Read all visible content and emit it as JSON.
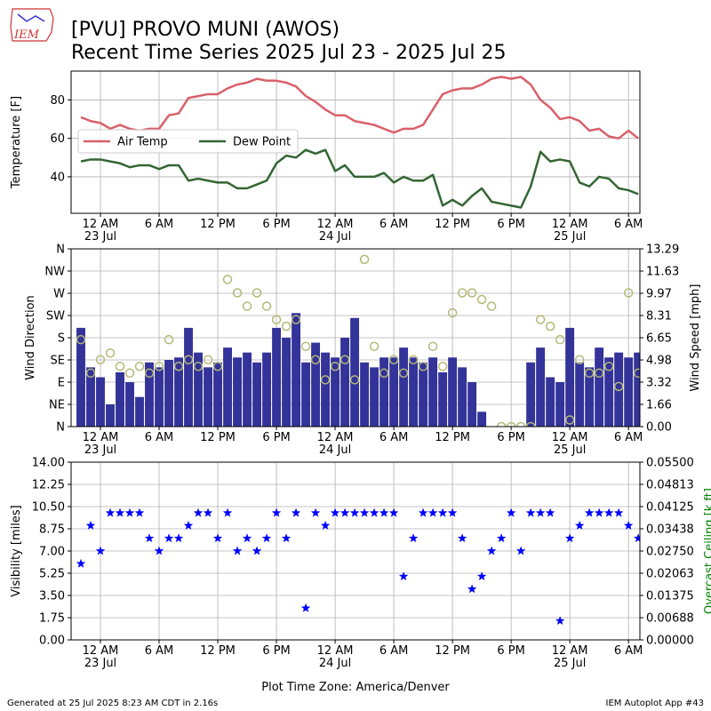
{
  "header": {
    "logo": "IEM",
    "title": "[PVU] PROVO MUNI (AWOS)",
    "subtitle": "Recent Time Series 2025 Jul 23 - 2025 Jul 25"
  },
  "footer": {
    "left": "Generated at 25 Jul 2025 8:23 AM CDT in 2.16s",
    "right": "IEM Autoplot App #43"
  },
  "chart_data": [
    {
      "type": "line",
      "ylabel": "Temperature [F]",
      "x": [
        "2025-07-22T22:00",
        "2025-07-22T23:00",
        "2025-07-23T00:00",
        "2025-07-23T01:00",
        "2025-07-23T02:00",
        "2025-07-23T03:00",
        "2025-07-23T04:00",
        "2025-07-23T05:00",
        "2025-07-23T06:00",
        "2025-07-23T07:00",
        "2025-07-23T08:00",
        "2025-07-23T09:00",
        "2025-07-23T10:00",
        "2025-07-23T11:00",
        "2025-07-23T12:00",
        "2025-07-23T13:00",
        "2025-07-23T14:00",
        "2025-07-23T15:00",
        "2025-07-23T16:00",
        "2025-07-23T17:00",
        "2025-07-23T18:00",
        "2025-07-23T19:00",
        "2025-07-23T20:00",
        "2025-07-23T21:00",
        "2025-07-23T22:00",
        "2025-07-23T23:00",
        "2025-07-24T00:00",
        "2025-07-24T01:00",
        "2025-07-24T02:00",
        "2025-07-24T03:00",
        "2025-07-24T04:00",
        "2025-07-24T05:00",
        "2025-07-24T06:00",
        "2025-07-24T07:00",
        "2025-07-24T08:00",
        "2025-07-24T09:00",
        "2025-07-24T10:00",
        "2025-07-24T11:00",
        "2025-07-24T12:00",
        "2025-07-24T13:00",
        "2025-07-24T14:00",
        "2025-07-24T15:00",
        "2025-07-24T16:00",
        "2025-07-24T17:00",
        "2025-07-24T18:00",
        "2025-07-24T19:00",
        "2025-07-24T20:00",
        "2025-07-24T21:00",
        "2025-07-24T22:00",
        "2025-07-24T23:00",
        "2025-07-25T00:00",
        "2025-07-25T01:00",
        "2025-07-25T02:00",
        "2025-07-25T03:00",
        "2025-07-25T04:00",
        "2025-07-25T05:00",
        "2025-07-25T06:00",
        "2025-07-25T07:00"
      ],
      "series": [
        {
          "name": "Air Temp",
          "color": "#d9606a",
          "values": [
            71,
            69,
            68,
            65,
            67,
            65,
            64,
            65,
            65,
            72,
            73,
            81,
            82,
            83,
            83,
            86,
            88,
            89,
            91,
            90,
            90,
            89,
            87,
            82,
            79,
            75,
            72,
            72,
            69,
            68,
            67,
            65,
            63,
            65,
            65,
            67,
            75,
            83,
            85,
            86,
            86,
            88,
            91,
            92,
            91,
            92,
            88,
            80,
            76,
            70,
            71,
            69,
            64,
            65,
            61,
            60,
            64,
            60
          ]
        },
        {
          "name": "Dew Point",
          "color": "#336633",
          "values": [
            48,
            49,
            49,
            48,
            47,
            45,
            46,
            46,
            44,
            46,
            46,
            38,
            39,
            38,
            37,
            37,
            34,
            34,
            36,
            38,
            47,
            51,
            50,
            54,
            52,
            54,
            43,
            46,
            40,
            40,
            40,
            42,
            37,
            40,
            38,
            38,
            41,
            25,
            28,
            25,
            30,
            34,
            27,
            26,
            25,
            24,
            35,
            53,
            48,
            49,
            48,
            37,
            35,
            40,
            39,
            34,
            33,
            31
          ]
        }
      ],
      "xlim": [
        "2025-07-22T21:00",
        "2025-07-25T07:10"
      ],
      "xticks": [
        {
          "value": "2025-07-23T00:00",
          "label": "12 AM\n23 Jul"
        },
        {
          "value": "2025-07-23T06:00",
          "label": "6 AM"
        },
        {
          "value": "2025-07-23T12:00",
          "label": "12 PM"
        },
        {
          "value": "2025-07-23T18:00",
          "label": "6 PM"
        },
        {
          "value": "2025-07-24T00:00",
          "label": "12 AM\n24 Jul"
        },
        {
          "value": "2025-07-24T06:00",
          "label": "6 AM"
        },
        {
          "value": "2025-07-24T12:00",
          "label": "12 PM"
        },
        {
          "value": "2025-07-24T18:00",
          "label": "6 PM"
        },
        {
          "value": "2025-07-25T00:00",
          "label": "12 AM\n25 Jul"
        },
        {
          "value": "2025-07-25T06:00",
          "label": "6 AM"
        }
      ],
      "ylim": [
        21,
        95
      ],
      "yticks": [
        40,
        60,
        80
      ],
      "grid": true,
      "legend": "upper left"
    },
    {
      "type": "bar",
      "ylabel": "Wind Direction",
      "y2label": "Wind Speed [mph]",
      "x": [
        "2025-07-22T22:00",
        "2025-07-22T23:00",
        "2025-07-23T00:00",
        "2025-07-23T01:00",
        "2025-07-23T02:00",
        "2025-07-23T03:00",
        "2025-07-23T04:00",
        "2025-07-23T05:00",
        "2025-07-23T06:00",
        "2025-07-23T07:00",
        "2025-07-23T08:00",
        "2025-07-23T09:00",
        "2025-07-23T10:00",
        "2025-07-23T11:00",
        "2025-07-23T12:00",
        "2025-07-23T13:00",
        "2025-07-23T14:00",
        "2025-07-23T15:00",
        "2025-07-23T16:00",
        "2025-07-23T17:00",
        "2025-07-23T18:00",
        "2025-07-23T19:00",
        "2025-07-23T20:00",
        "2025-07-23T21:00",
        "2025-07-23T22:00",
        "2025-07-23T23:00",
        "2025-07-24T00:00",
        "2025-07-24T01:00",
        "2025-07-24T02:00",
        "2025-07-24T03:00",
        "2025-07-24T04:00",
        "2025-07-24T05:00",
        "2025-07-24T06:00",
        "2025-07-24T07:00",
        "2025-07-24T08:00",
        "2025-07-24T09:00",
        "2025-07-24T10:00",
        "2025-07-24T11:00",
        "2025-07-24T12:00",
        "2025-07-24T13:00",
        "2025-07-24T14:00",
        "2025-07-24T15:00",
        "2025-07-24T16:00",
        "2025-07-24T17:00",
        "2025-07-24T18:00",
        "2025-07-24T19:00",
        "2025-07-24T20:00",
        "2025-07-24T21:00",
        "2025-07-24T22:00",
        "2025-07-24T23:00",
        "2025-07-25T00:00",
        "2025-07-25T01:00",
        "2025-07-25T02:00",
        "2025-07-25T03:00",
        "2025-07-25T04:00",
        "2025-07-25T05:00",
        "2025-07-25T06:00",
        "2025-07-25T07:00"
      ],
      "series": [
        {
          "type": "bar",
          "color": "#333399",
          "values": [
            200,
            120,
            100,
            45,
            110,
            90,
            60,
            130,
            120,
            135,
            140,
            200,
            150,
            120,
            130,
            160,
            140,
            150,
            130,
            150,
            200,
            180,
            230,
            130,
            170,
            150,
            140,
            180,
            220,
            130,
            120,
            140,
            140,
            160,
            140,
            130,
            140,
            110,
            140,
            120,
            90,
            30,
            0,
            0,
            0,
            0,
            130,
            160,
            100,
            90,
            200,
            130,
            120,
            160,
            140,
            150,
            140,
            150
          ]
        },
        {
          "type": "scatter",
          "axis": "y2",
          "color": "#b5b878",
          "values": [
            6.5,
            4,
            5,
            5.5,
            4.5,
            4,
            4.5,
            4,
            4.5,
            6.5,
            4.5,
            5,
            4.5,
            5,
            4.5,
            11,
            10,
            9,
            10,
            9,
            8,
            7.5,
            8,
            6,
            5,
            3.5,
            4.5,
            5,
            3.5,
            12.5,
            6,
            4,
            5,
            4,
            5,
            4.5,
            6,
            4.5,
            8.5,
            10,
            10,
            9.5,
            9,
            0,
            0,
            0,
            0,
            8,
            7.5,
            6.5,
            0.5,
            5,
            4,
            4,
            4.5,
            3,
            10,
            4
          ]
        }
      ],
      "xlim": [
        "2025-07-22T21:00",
        "2025-07-25T07:10"
      ],
      "xticks": [
        {
          "value": "2025-07-23T00:00",
          "label": "12 AM\n23 Jul"
        },
        {
          "value": "2025-07-23T06:00",
          "label": "6 AM"
        },
        {
          "value": "2025-07-23T12:00",
          "label": "12 PM"
        },
        {
          "value": "2025-07-23T18:00",
          "label": "6 PM"
        },
        {
          "value": "2025-07-24T00:00",
          "label": "12 AM\n24 Jul"
        },
        {
          "value": "2025-07-24T06:00",
          "label": "6 AM"
        },
        {
          "value": "2025-07-24T12:00",
          "label": "12 PM"
        },
        {
          "value": "2025-07-24T18:00",
          "label": "6 PM"
        },
        {
          "value": "2025-07-25T00:00",
          "label": "12 AM\n25 Jul"
        },
        {
          "value": "2025-07-25T06:00",
          "label": "6 AM"
        }
      ],
      "ylim": [
        0,
        360
      ],
      "yticks": [
        {
          "value": 0,
          "label": "N"
        },
        {
          "value": 45,
          "label": "NE"
        },
        {
          "value": 90,
          "label": "E"
        },
        {
          "value": 135,
          "label": "SE"
        },
        {
          "value": 180,
          "label": "S"
        },
        {
          "value": 225,
          "label": "SW"
        },
        {
          "value": 270,
          "label": "W"
        },
        {
          "value": 315,
          "label": "NW"
        },
        {
          "value": 360,
          "label": "N"
        }
      ],
      "y2lim": [
        0,
        13.29
      ],
      "y2ticks": [
        {
          "value": 0,
          "label": "0.00"
        },
        1.66,
        {
          "value": 3.3225,
          "label": "3.32"
        },
        {
          "value": 4.98375,
          "label": "4.98"
        },
        {
          "value": 6.645,
          "label": "6.65"
        },
        {
          "value": 8.30625,
          "label": "8.31"
        },
        {
          "value": 9.9675,
          "label": "9.97"
        },
        {
          "value": 11.62875,
          "label": "11.63"
        },
        13.29
      ],
      "grid": true
    },
    {
      "type": "scatter",
      "ylabel": "Visibility [miles]",
      "y2label": "Overcast Ceiling [k ft]",
      "y2label_color": "#008000",
      "xlabel": "Plot Time Zone: America/Denver",
      "x": [
        "2025-07-22T22:00",
        "2025-07-22T23:00",
        "2025-07-23T00:00",
        "2025-07-23T01:00",
        "2025-07-23T02:00",
        "2025-07-23T03:00",
        "2025-07-23T04:00",
        "2025-07-23T05:00",
        "2025-07-23T06:00",
        "2025-07-23T07:00",
        "2025-07-23T08:00",
        "2025-07-23T09:00",
        "2025-07-23T10:00",
        "2025-07-23T11:00",
        "2025-07-23T12:00",
        "2025-07-23T13:00",
        "2025-07-23T14:00",
        "2025-07-23T15:00",
        "2025-07-23T16:00",
        "2025-07-23T17:00",
        "2025-07-23T18:00",
        "2025-07-23T19:00",
        "2025-07-23T20:00",
        "2025-07-23T21:00",
        "2025-07-23T22:00",
        "2025-07-23T23:00",
        "2025-07-24T00:00",
        "2025-07-24T01:00",
        "2025-07-24T02:00",
        "2025-07-24T03:00",
        "2025-07-24T04:00",
        "2025-07-24T05:00",
        "2025-07-24T06:00",
        "2025-07-24T07:00",
        "2025-07-24T08:00",
        "2025-07-24T09:00",
        "2025-07-24T10:00",
        "2025-07-24T11:00",
        "2025-07-24T12:00",
        "2025-07-24T13:00",
        "2025-07-24T14:00",
        "2025-07-24T15:00",
        "2025-07-24T16:00",
        "2025-07-24T17:00",
        "2025-07-24T18:00",
        "2025-07-24T19:00",
        "2025-07-24T20:00",
        "2025-07-24T21:00",
        "2025-07-24T22:00",
        "2025-07-24T23:00",
        "2025-07-25T00:00",
        "2025-07-25T01:00",
        "2025-07-25T02:00",
        "2025-07-25T03:00",
        "2025-07-25T04:00",
        "2025-07-25T05:00",
        "2025-07-25T06:00",
        "2025-07-25T07:00"
      ],
      "series": [
        {
          "color": "#0000ff",
          "values": [
            6,
            9,
            7,
            10,
            10,
            10,
            10,
            8,
            7,
            8,
            8,
            9,
            10,
            10,
            8,
            10,
            7,
            8,
            7,
            8,
            10,
            8,
            10,
            2.5,
            10,
            9,
            10,
            10,
            10,
            10,
            10,
            10,
            10,
            5,
            8,
            10,
            10,
            10,
            10,
            8,
            4,
            5,
            7,
            8,
            10,
            7,
            10,
            10,
            10,
            1.5,
            8,
            9,
            10,
            10,
            10,
            10,
            9,
            8
          ]
        }
      ],
      "xlim": [
        "2025-07-22T21:00",
        "2025-07-25T07:10"
      ],
      "xticks": [
        {
          "value": "2025-07-23T00:00",
          "label": "12 AM\n23 Jul"
        },
        {
          "value": "2025-07-23T06:00",
          "label": "6 AM"
        },
        {
          "value": "2025-07-23T12:00",
          "label": "12 PM"
        },
        {
          "value": "2025-07-23T18:00",
          "label": "6 PM"
        },
        {
          "value": "2025-07-24T00:00",
          "label": "12 AM\n24 Jul"
        },
        {
          "value": "2025-07-24T06:00",
          "label": "6 AM"
        },
        {
          "value": "2025-07-24T12:00",
          "label": "12 PM"
        },
        {
          "value": "2025-07-24T18:00",
          "label": "6 PM"
        },
        {
          "value": "2025-07-25T00:00",
          "label": "12 AM\n25 Jul"
        },
        {
          "value": "2025-07-25T06:00",
          "label": "6 AM"
        }
      ],
      "ylim": [
        0,
        14
      ],
      "yticks": [
        {
          "value": 0,
          "label": "0.00"
        },
        1.75,
        {
          "value": 3.5,
          "label": "3.50"
        },
        5.25,
        {
          "value": 7,
          "label": "7.00"
        },
        8.75,
        {
          "value": 10.5,
          "label": "10.50"
        },
        12.25,
        {
          "value": 14,
          "label": "14.00"
        }
      ],
      "y2lim": [
        0,
        0.055
      ],
      "y2ticks": [
        {
          "value": 0,
          "label": "0.00000"
        },
        {
          "value": 0.006875,
          "label": "0.00688"
        },
        0.01375,
        {
          "value": 0.020625,
          "label": "0.02063"
        },
        {
          "value": 0.0275,
          "label": "0.02750"
        },
        {
          "value": 0.034375,
          "label": "0.03438"
        },
        0.04125,
        {
          "value": 0.048125,
          "label": "0.04813"
        },
        {
          "value": 0.055,
          "label": "0.05500"
        }
      ],
      "grid": true
    }
  ]
}
